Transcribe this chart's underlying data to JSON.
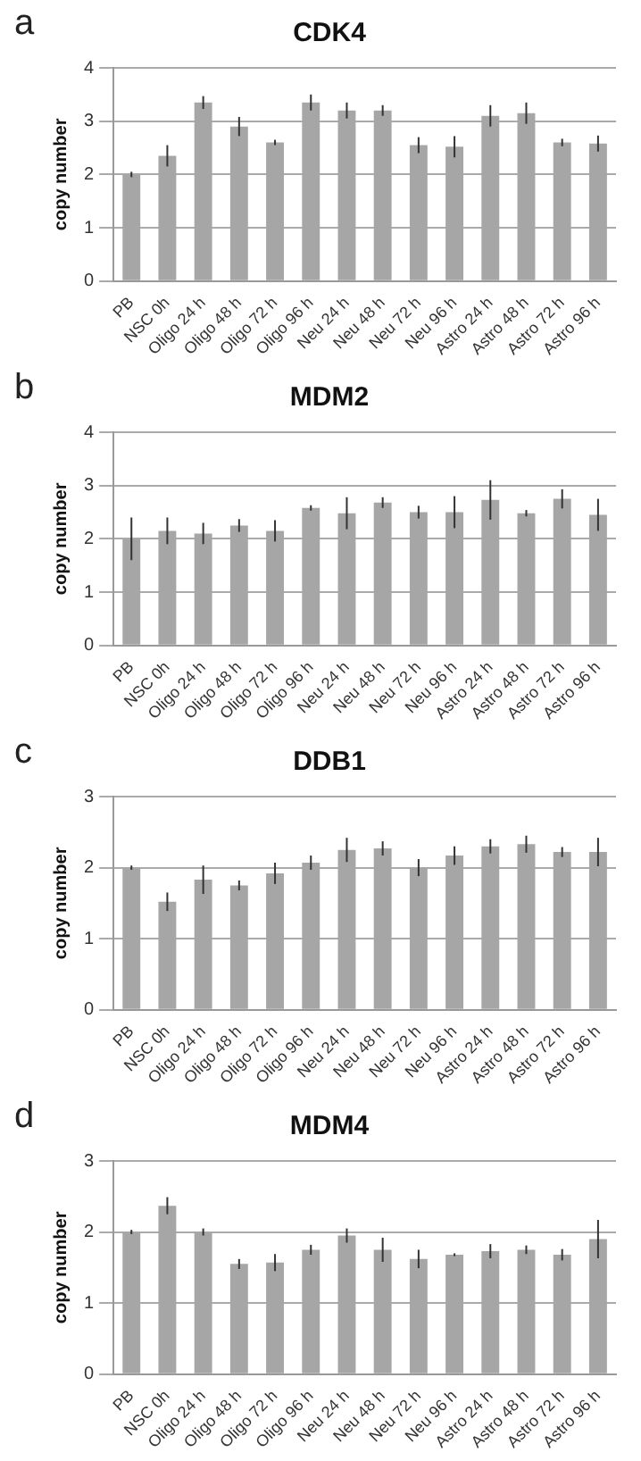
{
  "chart_data": [
    {
      "type": "bar",
      "title": "CDK4",
      "ylabel": "copy number",
      "annotations": [
        "a"
      ],
      "categories": [
        "PB",
        "NSC 0h",
        "Oligo 24 h",
        "Oligo 48 h",
        "Oligo 72 h",
        "Oligo 96 h",
        "Neu 24 h",
        "Neu 48 h",
        "Neu 72 h",
        "Neu 96 h",
        "Astro 24 h",
        "Astro 48 h",
        "Astro 72 h",
        "Astro 96 h"
      ],
      "values": [
        2.0,
        2.35,
        3.35,
        2.9,
        2.6,
        3.35,
        3.2,
        3.2,
        2.55,
        2.52,
        3.1,
        3.15,
        2.6,
        2.58
      ],
      "errors": [
        0.05,
        0.2,
        0.12,
        0.18,
        0.05,
        0.15,
        0.15,
        0.1,
        0.15,
        0.2,
        0.2,
        0.2,
        0.07,
        0.15
      ],
      "color": "#a6a6a6",
      "ylim": [
        0,
        4
      ],
      "yticks": [
        0,
        1,
        2,
        3,
        4
      ],
      "grid": "y"
    },
    {
      "type": "bar",
      "title": "MDM2",
      "ylabel": "copy number",
      "annotations": [
        "b"
      ],
      "categories": [
        "PB",
        "NSC 0h",
        "Oligo 24 h",
        "Oligo 48 h",
        "Oligo 72 h",
        "Oligo 96 h",
        "Neu 24 h",
        "Neu 48 h",
        "Neu 72 h",
        "Neu 96 h",
        "Astro 24 h",
        "Astro 48 h",
        "Astro 72 h",
        "Astro 96 h"
      ],
      "values": [
        2.0,
        2.15,
        2.1,
        2.25,
        2.15,
        2.58,
        2.48,
        2.68,
        2.5,
        2.5,
        2.73,
        2.48,
        2.75,
        2.45
      ],
      "errors": [
        0.4,
        0.25,
        0.2,
        0.12,
        0.2,
        0.05,
        0.3,
        0.1,
        0.12,
        0.3,
        0.37,
        0.06,
        0.18,
        0.3
      ],
      "color": "#a6a6a6",
      "ylim": [
        0,
        4
      ],
      "yticks": [
        0,
        1,
        2,
        3,
        4
      ],
      "grid": "y"
    },
    {
      "type": "bar",
      "title": "DDB1",
      "ylabel": "copy number",
      "annotations": [
        "c"
      ],
      "categories": [
        "PB",
        "NSC 0h",
        "Oligo 24 h",
        "Oligo 48 h",
        "Oligo 72 h",
        "Oligo 96 h",
        "Neu 24 h",
        "Neu 48 h",
        "Neu 72 h",
        "Neu 96 h",
        "Astro 24 h",
        "Astro 48 h",
        "Astro 72 h",
        "Astro 96 h"
      ],
      "values": [
        2.0,
        1.52,
        1.83,
        1.75,
        1.92,
        2.07,
        2.25,
        2.27,
        2.0,
        2.17,
        2.3,
        2.33,
        2.22,
        2.22
      ],
      "errors": [
        0.03,
        0.13,
        0.2,
        0.07,
        0.15,
        0.1,
        0.17,
        0.1,
        0.12,
        0.13,
        0.1,
        0.12,
        0.07,
        0.2
      ],
      "color": "#a6a6a6",
      "ylim": [
        0,
        3
      ],
      "yticks": [
        0,
        1,
        2,
        3
      ],
      "grid": "y"
    },
    {
      "type": "bar",
      "title": "MDM4",
      "ylabel": "copy number",
      "annotations": [
        "d"
      ],
      "categories": [
        "PB",
        "NSC 0h",
        "Oligo 24 h",
        "Oligo 48 h",
        "Oligo 72 h",
        "Oligo 96 h",
        "Neu 24 h",
        "Neu 48 h",
        "Neu 72 h",
        "Neu 96 h",
        "Astro 24 h",
        "Astro 48 h",
        "Astro 72 h",
        "Astro 96 h"
      ],
      "values": [
        2.0,
        2.37,
        2.0,
        1.55,
        1.57,
        1.75,
        1.95,
        1.75,
        1.62,
        1.68,
        1.73,
        1.75,
        1.68,
        1.9
      ],
      "errors": [
        0.03,
        0.12,
        0.05,
        0.07,
        0.12,
        0.07,
        0.1,
        0.17,
        0.13,
        0.02,
        0.1,
        0.06,
        0.08,
        0.27
      ],
      "color": "#a6a6a6",
      "ylim": [
        0,
        3
      ],
      "yticks": [
        0,
        1,
        2,
        3
      ],
      "grid": "y"
    }
  ]
}
